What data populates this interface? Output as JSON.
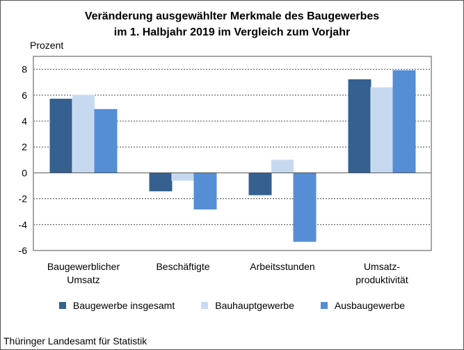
{
  "chart_data": {
    "type": "bar",
    "title": [
      "Veränderung ausgewählter Merkmale des Baugewerbes",
      "im 1. Halbjahr 2019  im Vergleich zum Vorjahr"
    ],
    "ylabel": "Prozent",
    "ylim": [
      -6,
      9
    ],
    "yticks": [
      8,
      6,
      4,
      2,
      0,
      -2,
      -4,
      -6
    ],
    "grid": true,
    "legend_position": "bottom",
    "categories": [
      [
        "Baugewerblicher",
        "Umsatz"
      ],
      [
        "Beschäftigte"
      ],
      [
        "Arbeitsstunden"
      ],
      [
        "Umsatz-",
        "produktivität"
      ]
    ],
    "series": [
      {
        "name": "Baugewerbe insgesamt",
        "color": "#356090",
        "values": [
          5.7,
          -1.4,
          -1.7,
          7.2
        ]
      },
      {
        "name": "Bauhauptgewerbe",
        "color": "#c6d9f0",
        "values": [
          6.0,
          -0.6,
          1.0,
          6.6
        ]
      },
      {
        "name": "Ausbaugewerbe",
        "color": "#558ed5",
        "values": [
          4.9,
          -2.8,
          -5.3,
          7.9
        ]
      }
    ]
  },
  "source": "Thüringer Landesamt für Statistik"
}
